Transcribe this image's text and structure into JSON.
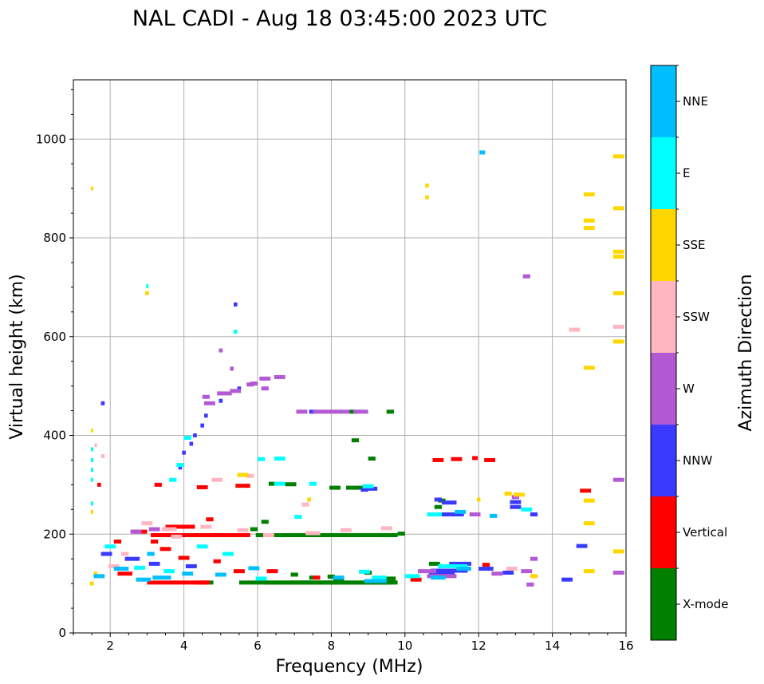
{
  "chart_data": {
    "type": "scatter",
    "title": "NAL CADI - Aug 18 03:45:00 2023 UTC",
    "xlabel": "Frequency (MHz)",
    "ylabel": "Virtual height (km)",
    "xlim": [
      1,
      16
    ],
    "ylim": [
      0,
      1120
    ],
    "xticks": [
      2,
      4,
      6,
      8,
      10,
      12,
      14,
      16
    ],
    "yticks": [
      0,
      200,
      400,
      600,
      800,
      1000
    ],
    "grid": true,
    "colorbar": {
      "title": "Azimuth Direction",
      "entries": [
        {
          "label": "X-mode",
          "color": "#008000"
        },
        {
          "label": "Vertical",
          "color": "#ff0000"
        },
        {
          "label": "NNW",
          "color": "#3a3aff"
        },
        {
          "label": "W",
          "color": "#b459d4"
        },
        {
          "label": "SSW",
          "color": "#ffb6c1"
        },
        {
          "label": "SSE",
          "color": "#ffd700"
        },
        {
          "label": "E",
          "color": "#00ffff"
        },
        {
          "label": "NNE",
          "color": "#00bfff"
        }
      ]
    },
    "series": [
      {
        "name": "X-mode",
        "points": [
          [
            6.5,
            102,
            2.0
          ],
          [
            7.2,
            102,
            2.0
          ],
          [
            7.9,
            102,
            2.0
          ],
          [
            8.6,
            102,
            2.0
          ],
          [
            9.3,
            102,
            1.0
          ],
          [
            6.7,
            198,
            1.5
          ],
          [
            7.6,
            198,
            1.5
          ],
          [
            8.5,
            198,
            1.5
          ],
          [
            9.3,
            198,
            1.0
          ],
          [
            9.9,
            201,
            0.2
          ],
          [
            8.7,
            294,
            0.6
          ],
          [
            8.1,
            294,
            0.3
          ],
          [
            6.9,
            301,
            0.3
          ],
          [
            6.4,
            302,
            0.2
          ],
          [
            8.6,
            448,
            0.2
          ],
          [
            9.6,
            448,
            0.2
          ],
          [
            8.65,
            390,
            0.2
          ],
          [
            9.1,
            353,
            0.2
          ],
          [
            7.0,
            118,
            0.2
          ],
          [
            7.5,
            112,
            0.2
          ],
          [
            8.0,
            114,
            0.2
          ],
          [
            8.2,
            108,
            0.3
          ],
          [
            10.8,
            140,
            0.3
          ],
          [
            10.9,
            255,
            0.2
          ],
          [
            11.0,
            268,
            0.2
          ],
          [
            5.9,
            210,
            0.2
          ],
          [
            6.2,
            225,
            0.2
          ],
          [
            4.6,
            102,
            0.4
          ],
          [
            9.6,
            110,
            0.3
          ],
          [
            9.0,
            122,
            0.2
          ]
        ]
      },
      {
        "name": "Vertical",
        "points": [
          [
            3.8,
            102,
            1.6
          ],
          [
            4.5,
            102,
            0.4
          ],
          [
            4.2,
            198,
            1.4
          ],
          [
            3.5,
            198,
            0.8
          ],
          [
            5.2,
            198,
            1.2
          ],
          [
            3.9,
            215,
            0.8
          ],
          [
            2.8,
            205,
            0.4
          ],
          [
            3.3,
            300,
            0.2
          ],
          [
            4.5,
            295,
            0.3
          ],
          [
            5.6,
            298,
            0.4
          ],
          [
            10.9,
            350,
            0.3
          ],
          [
            11.4,
            352,
            0.3
          ],
          [
            11.9,
            354,
            0.15
          ],
          [
            12.3,
            350,
            0.3
          ],
          [
            12.2,
            138,
            0.2
          ],
          [
            14.9,
            288,
            0.3
          ],
          [
            10.3,
            108,
            0.3
          ],
          [
            2.4,
            120,
            0.4
          ],
          [
            3.5,
            170,
            0.3
          ],
          [
            4.0,
            152,
            0.3
          ],
          [
            4.9,
            145,
            0.2
          ],
          [
            5.5,
            125,
            0.3
          ],
          [
            6.4,
            125,
            0.3
          ],
          [
            7.6,
            112,
            0.2
          ],
          [
            4.7,
            230,
            0.2
          ],
          [
            3.2,
            185,
            0.2
          ],
          [
            2.2,
            185,
            0.2
          ],
          [
            1.7,
            300,
            0.1
          ]
        ]
      },
      {
        "name": "NNW",
        "points": [
          [
            1.8,
            465,
            0.1
          ],
          [
            4.0,
            365,
            0.1
          ],
          [
            4.2,
            383,
            0.1
          ],
          [
            4.3,
            400,
            0.1
          ],
          [
            4.5,
            420,
            0.1
          ],
          [
            4.6,
            440,
            0.1
          ],
          [
            5.0,
            470,
            0.1
          ],
          [
            5.5,
            495,
            0.1
          ],
          [
            5.4,
            665,
            0.1
          ],
          [
            3.9,
            335,
            0.1
          ],
          [
            11.5,
            140,
            0.6
          ],
          [
            11.2,
            126,
            1.0
          ],
          [
            11.0,
            118,
            0.7
          ],
          [
            12.2,
            130,
            0.4
          ],
          [
            11.2,
            240,
            0.8
          ],
          [
            13.0,
            255,
            0.3
          ],
          [
            13.0,
            265,
            0.3
          ],
          [
            13.5,
            240,
            0.2
          ],
          [
            14.8,
            176,
            0.3
          ],
          [
            14.4,
            108,
            0.3
          ],
          [
            1.9,
            160,
            0.3
          ],
          [
            2.6,
            150,
            0.4
          ],
          [
            3.2,
            140,
            0.3
          ],
          [
            4.2,
            135,
            0.3
          ],
          [
            9.1,
            292,
            0.3
          ],
          [
            8.9,
            290,
            0.2
          ],
          [
            11.2,
            264,
            0.4
          ],
          [
            12.8,
            122,
            0.3
          ],
          [
            10.9,
            270,
            0.2
          ],
          [
            7.5,
            448,
            0.2
          ]
        ]
      },
      {
        "name": "W",
        "points": [
          [
            4.7,
            465,
            0.3
          ],
          [
            5.1,
            485,
            0.4
          ],
          [
            5.4,
            490,
            0.3
          ],
          [
            5.8,
            503,
            0.2
          ],
          [
            6.2,
            515,
            0.3
          ],
          [
            6.6,
            518,
            0.3
          ],
          [
            5.3,
            535,
            0.1
          ],
          [
            5.0,
            572,
            0.1
          ],
          [
            8.0,
            448,
            1.0
          ],
          [
            7.2,
            448,
            0.3
          ],
          [
            8.8,
            448,
            0.4
          ],
          [
            13.3,
            722,
            0.2
          ],
          [
            15.8,
            310,
            0.3
          ],
          [
            15.8,
            122,
            0.3
          ],
          [
            13.5,
            150,
            0.2
          ],
          [
            13.3,
            125,
            0.3
          ],
          [
            13.4,
            98,
            0.2
          ],
          [
            11.0,
            115,
            0.8
          ],
          [
            10.6,
            125,
            0.5
          ],
          [
            12.5,
            120,
            0.3
          ],
          [
            11.9,
            240,
            0.3
          ],
          [
            13.0,
            275,
            0.2
          ],
          [
            3.2,
            210,
            0.3
          ],
          [
            2.7,
            205,
            0.3
          ],
          [
            5.9,
            505,
            0.2
          ],
          [
            4.6,
            478,
            0.2
          ],
          [
            6.2,
            495,
            0.2
          ]
        ]
      },
      {
        "name": "SSW",
        "points": [
          [
            1.6,
            380,
            0.05
          ],
          [
            1.8,
            358,
            0.1
          ],
          [
            3.0,
            222,
            0.3
          ],
          [
            3.6,
            210,
            0.4
          ],
          [
            4.6,
            215,
            0.3
          ],
          [
            5.6,
            208,
            0.3
          ],
          [
            6.3,
            198,
            0.3
          ],
          [
            7.5,
            202,
            0.4
          ],
          [
            8.4,
            208,
            0.3
          ],
          [
            9.5,
            212,
            0.3
          ],
          [
            14.6,
            614,
            0.3
          ],
          [
            15.8,
            620,
            0.3
          ],
          [
            12.9,
            130,
            0.3
          ],
          [
            2.1,
            135,
            0.3
          ],
          [
            2.4,
            160,
            0.2
          ],
          [
            4.9,
            310,
            0.3
          ],
          [
            5.8,
            318,
            0.2
          ],
          [
            7.3,
            260,
            0.2
          ],
          [
            3.8,
            195,
            0.3
          ]
        ]
      },
      {
        "name": "SSE",
        "points": [
          [
            1.5,
            900,
            0.05
          ],
          [
            10.6,
            906,
            0.1
          ],
          [
            10.6,
            882,
            0.1
          ],
          [
            15.0,
            888,
            0.3
          ],
          [
            15.0,
            835,
            0.3
          ],
          [
            15.0,
            820,
            0.3
          ],
          [
            15.8,
            965,
            0.3
          ],
          [
            15.8,
            860,
            0.3
          ],
          [
            15.8,
            772,
            0.3
          ],
          [
            15.8,
            762,
            0.3
          ],
          [
            15.8,
            688,
            0.3
          ],
          [
            15.8,
            590,
            0.3
          ],
          [
            15.8,
            165,
            0.3
          ],
          [
            15.0,
            537,
            0.3
          ],
          [
            15.0,
            268,
            0.3
          ],
          [
            15.0,
            222,
            0.3
          ],
          [
            15.0,
            125,
            0.3
          ],
          [
            13.5,
            115,
            0.2
          ],
          [
            13.1,
            280,
            0.3
          ],
          [
            12.0,
            270,
            0.1
          ],
          [
            1.5,
            410,
            0.05
          ],
          [
            1.5,
            245,
            0.05
          ],
          [
            3.0,
            688,
            0.1
          ],
          [
            5.6,
            320,
            0.3
          ],
          [
            7.4,
            270,
            0.1
          ],
          [
            1.5,
            100,
            0.1
          ],
          [
            1.6,
            120,
            0.1
          ],
          [
            12.8,
            282,
            0.2
          ]
        ]
      },
      {
        "name": "E",
        "points": [
          [
            1.5,
            372,
            0.05
          ],
          [
            1.5,
            350,
            0.05
          ],
          [
            1.5,
            330,
            0.05
          ],
          [
            1.5,
            310,
            0.05
          ],
          [
            1.5,
            262,
            0.05
          ],
          [
            3.0,
            702,
            0.05
          ],
          [
            3.7,
            310,
            0.2
          ],
          [
            3.9,
            340,
            0.2
          ],
          [
            4.1,
            395,
            0.2
          ],
          [
            5.4,
            610,
            0.1
          ],
          [
            6.6,
            353,
            0.3
          ],
          [
            6.1,
            352,
            0.2
          ],
          [
            6.6,
            302,
            0.3
          ],
          [
            7.5,
            302,
            0.2
          ],
          [
            9.0,
            297,
            0.3
          ],
          [
            10.2,
            115,
            0.4
          ],
          [
            11.3,
            135,
            0.8
          ],
          [
            10.8,
            240,
            0.4
          ],
          [
            13.3,
            250,
            0.3
          ],
          [
            8.9,
            124,
            0.3
          ],
          [
            2.0,
            175,
            0.3
          ],
          [
            2.8,
            132,
            0.3
          ],
          [
            3.6,
            125,
            0.3
          ],
          [
            5.2,
            160,
            0.3
          ],
          [
            4.5,
            175,
            0.3
          ],
          [
            6.1,
            110,
            0.3
          ],
          [
            7.1,
            235,
            0.2
          ],
          [
            9.3,
            112,
            0.4
          ]
        ]
      },
      {
        "name": "NNE",
        "points": [
          [
            12.1,
            973,
            0.15
          ],
          [
            1.7,
            115,
            0.3
          ],
          [
            2.3,
            130,
            0.4
          ],
          [
            3.4,
            112,
            0.5
          ],
          [
            2.9,
            108,
            0.4
          ],
          [
            4.1,
            120,
            0.3
          ],
          [
            3.1,
            160,
            0.2
          ],
          [
            9.2,
            105,
            0.6
          ],
          [
            11.6,
            130,
            0.4
          ],
          [
            12.4,
            237,
            0.2
          ],
          [
            10.9,
            112,
            0.4
          ],
          [
            11.5,
            245,
            0.3
          ],
          [
            8.2,
            112,
            0.3
          ],
          [
            5.0,
            118,
            0.3
          ],
          [
            5.9,
            131,
            0.3
          ]
        ]
      }
    ]
  }
}
